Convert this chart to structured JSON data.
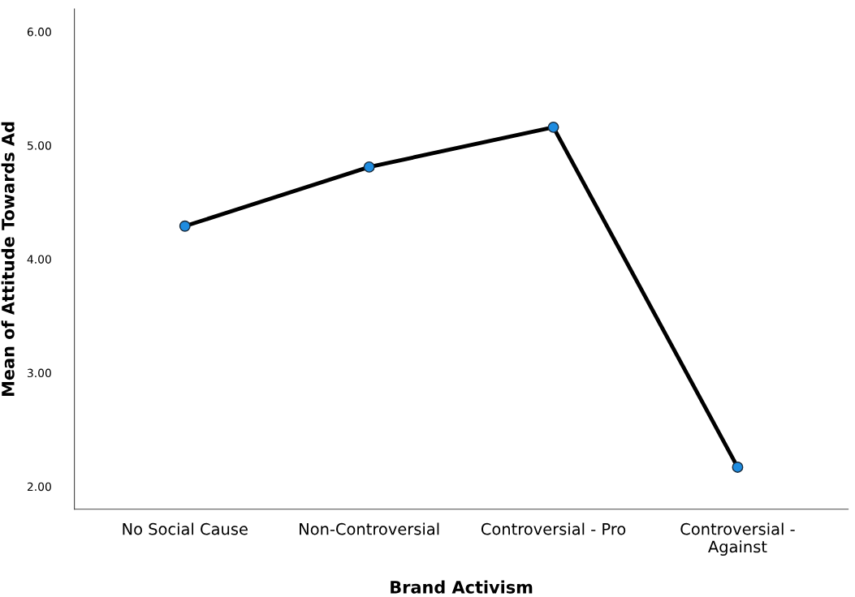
{
  "chart_data": {
    "type": "line",
    "xlabel": "Brand Activism",
    "ylabel": "Mean of Attitude Towards Ad",
    "categories": [
      "No Social Cause",
      "Non-Controversial",
      "Controversial - Pro",
      "Controversial - Against"
    ],
    "series": [
      {
        "color": "#000000",
        "colors": [
          "#1e8ce0",
          "#1e8ce0",
          "#1e8ce0",
          "#1e8ce0"
        ],
        "values": [
          4.29,
          4.81,
          5.16,
          2.17
        ]
      }
    ],
    "marker": "circle",
    "line_style": "solid",
    "ylim": [
      1.8,
      6.2
    ],
    "yticks": [
      {
        "value": 2,
        "label": "2.00"
      },
      {
        "value": 3,
        "label": "3.00"
      },
      {
        "value": 4,
        "label": "4.00"
      },
      {
        "value": 5,
        "label": "5.00"
      },
      {
        "value": 6,
        "label": "6.00"
      }
    ],
    "grid": false,
    "legend": false
  }
}
